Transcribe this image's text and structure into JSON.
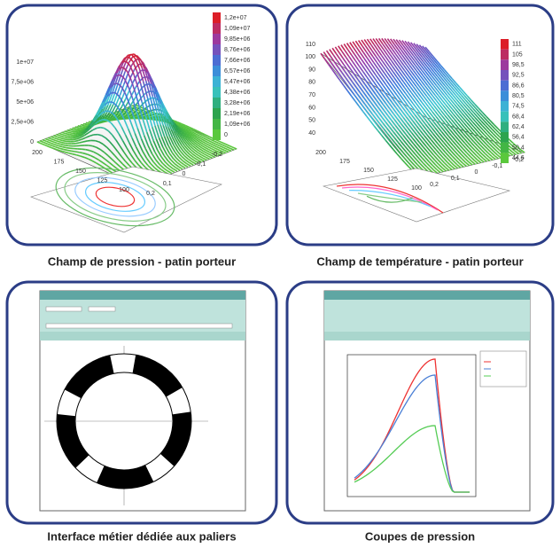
{
  "panels": [
    {
      "caption": "Champ de pression - patin porteur",
      "colorbar": [
        "1,2e+07",
        "1,09e+07",
        "9,85e+06",
        "8,76e+06",
        "7,66e+06",
        "6,57e+06",
        "5,47e+06",
        "4,38e+06",
        "3,28e+06",
        "2,19e+06",
        "1,09e+06",
        "0"
      ],
      "z_axis": [
        "1e+07",
        "7,5e+06",
        "5e+06",
        "2,5e+06",
        "0"
      ],
      "x_axis": [
        "200",
        "175",
        "150",
        "125",
        "100"
      ],
      "y_axis": [
        "0,2",
        "0,1",
        "0",
        "-0,1",
        "-0,2"
      ]
    },
    {
      "caption": "Champ de température - patin porteur",
      "colorbar": [
        "111",
        "105",
        "98,5",
        "92,5",
        "86,6",
        "80,5",
        "74,5",
        "68,4",
        "62,4",
        "56,4",
        "50,4",
        "44,6"
      ],
      "z_axis": [
        "110",
        "100",
        "90",
        "80",
        "70",
        "60",
        "50",
        "40"
      ],
      "x_axis": [
        "200",
        "175",
        "150",
        "125",
        "100"
      ],
      "y_axis": [
        "0,2",
        "0,1",
        "0",
        "-0,1",
        "-0,2"
      ]
    },
    {
      "caption": "Interface métier dédiée aux paliers"
    },
    {
      "caption": "Coupes de pression"
    }
  ]
}
